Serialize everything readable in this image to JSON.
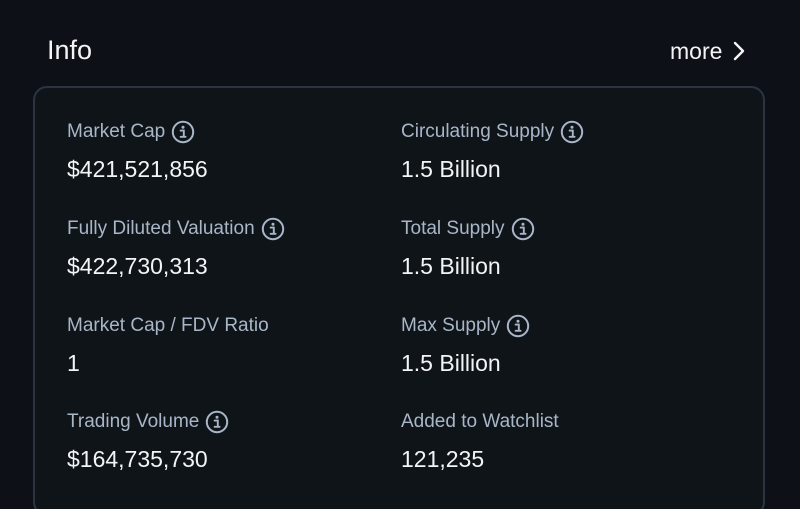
{
  "header": {
    "title": "Info",
    "more_label": "more"
  },
  "stats": {
    "market_cap": {
      "label": "Market Cap",
      "value": "$421,521,856"
    },
    "circulating_supply": {
      "label": "Circulating Supply",
      "value": "1.5 Billion"
    },
    "fdv": {
      "label": "Fully Diluted Valuation",
      "value": "$422,730,313"
    },
    "total_supply": {
      "label": "Total Supply",
      "value": "1.5 Billion"
    },
    "mc_fdv_ratio": {
      "label": "Market Cap / FDV Ratio",
      "value": "1"
    },
    "max_supply": {
      "label": "Max Supply",
      "value": "1.5 Billion"
    },
    "trading_volume": {
      "label": "Trading Volume",
      "value": "$164,735,730"
    },
    "watchlist": {
      "label": "Added to Watchlist",
      "value": "121,235"
    }
  },
  "icons": {
    "info": "info-circle-icon",
    "more": "chevron-right-icon"
  },
  "colors": {
    "background": "#0d1117",
    "card_border": "#2b3440",
    "label": "#a9b6c8",
    "value": "#f3f4f6"
  }
}
